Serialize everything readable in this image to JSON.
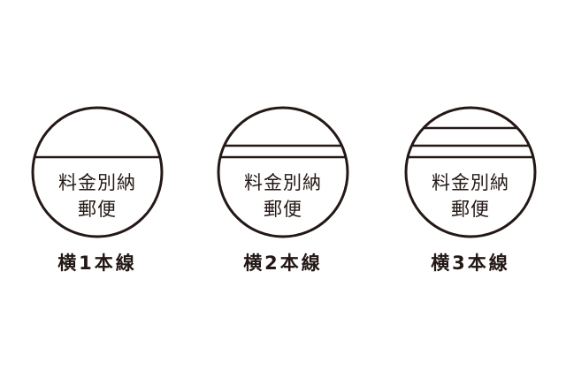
{
  "colors": {
    "ink": "#231815",
    "background": "#ffffff"
  },
  "marks": [
    {
      "line1": "料金別納",
      "line2": "郵便",
      "caption": "横1本線",
      "line_count": 1
    },
    {
      "line1": "料金別納",
      "line2": "郵便",
      "caption": "横2本線",
      "line_count": 2
    },
    {
      "line1": "料金別納",
      "line2": "郵便",
      "caption": "横3本線",
      "line_count": 3
    }
  ]
}
